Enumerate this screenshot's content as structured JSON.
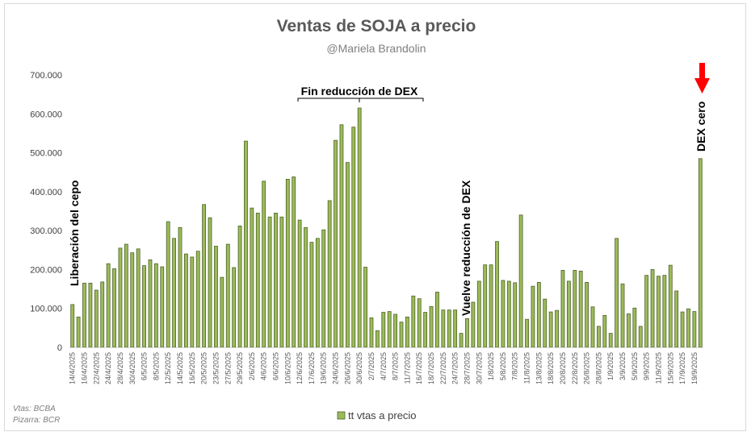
{
  "chart_data": {
    "type": "bar",
    "title": "Ventas de SOJA a precio",
    "subtitle": "@Mariela Brandolin",
    "xlabel": "",
    "ylabel": "",
    "ylim": [
      0,
      700000
    ],
    "yticks": [
      "0",
      "100.000",
      "200.000",
      "300.000",
      "400.000",
      "500.000",
      "600.000",
      "700.000"
    ],
    "grid": false,
    "legend_position": "bottom",
    "series": [
      {
        "name": "tt vtas a precio",
        "color": "#9bbb59",
        "edge": "#4f6228"
      }
    ],
    "categories": [
      "14/4/2025",
      "",
      "16/4/2025",
      "",
      "22/4/2025",
      "",
      "24/4/2025",
      "",
      "28/4/2025",
      "",
      "30/4/2025",
      "",
      "6/5/2025",
      "",
      "8/5/2025",
      "",
      "12/5/2025",
      "",
      "14/5/2025",
      "",
      "16/5/2025",
      "",
      "20/5/2025",
      "",
      "23/5/2025",
      "",
      "27/5/2025",
      "",
      "29/5/2025",
      "",
      "2/6/2025",
      "",
      "4/6/2025",
      "",
      "6/6/2025",
      "",
      "10/6/2025",
      "",
      "12/6/2025",
      "",
      "17/6/2025",
      "",
      "19/6/2025",
      "",
      "24/6/2025",
      "",
      "26/6/2025",
      "",
      "30/6/2025",
      "",
      "2/7/2025",
      "",
      "4/7/2025",
      "",
      "8/7/2025",
      "",
      "11/7/2025",
      "",
      "16/7/2025",
      "",
      "18/7/2025",
      "",
      "22/7/2025",
      "",
      "24/7/2025",
      "",
      "28/7/2025",
      "",
      "30/7/2025",
      "",
      "1/8/2025",
      "",
      "5/8/2025",
      "",
      "7/8/2025",
      "",
      "11/8/2025",
      "",
      "13/8/2025",
      "",
      "18/8/2025",
      "",
      "20/8/2025",
      "",
      "22/8/2025",
      "",
      "26/8/2025",
      "",
      "28/8/2025",
      "",
      "1/9/2025",
      "",
      "3/9/2025",
      "",
      "5/9/2025",
      "",
      "9/9/2025",
      "",
      "11/9/2025",
      "",
      "15/9/2025",
      "",
      "17/9/2025",
      "",
      "19/9/2025",
      ""
    ],
    "values": [
      110000,
      78000,
      165000,
      165000,
      147000,
      168000,
      215000,
      202000,
      255000,
      265000,
      243000,
      253000,
      210000,
      225000,
      215000,
      207000,
      323000,
      280000,
      308000,
      240000,
      232000,
      247000,
      367000,
      333000,
      260000,
      180000,
      265000,
      205000,
      312000,
      530000,
      358000,
      345000,
      427000,
      335000,
      345000,
      335000,
      432000,
      438000,
      327000,
      308000,
      270000,
      280000,
      302000,
      377000,
      532000,
      572000,
      475000,
      566000,
      615000,
      206000,
      76000,
      43000,
      90000,
      92000,
      85000,
      65000,
      78000,
      132000,
      125000,
      90000,
      105000,
      142000,
      96000,
      96000,
      96000,
      36000,
      74000,
      116000,
      170000,
      212000,
      212000,
      272000,
      172000,
      170000,
      166000,
      340000,
      72000,
      157000,
      167000,
      124000,
      91000,
      95000,
      198000,
      170000,
      198000,
      196000,
      167000,
      104000,
      54000,
      82000,
      36000,
      280000,
      163000,
      86000,
      101000,
      54000,
      185000,
      200000,
      183000,
      185000,
      211000,
      145000,
      91000,
      99000,
      92000,
      485000
    ],
    "annotations": {
      "liberacion": "Liberación del cepo",
      "fin_dex": "Fin reducción de DEX",
      "vuelve_dex": "Vuelve reducción de DEX",
      "dex_cero": "DEX cero"
    },
    "arrow_color": "#ff0000"
  },
  "footnotes": [
    "Vtas: BCBA",
    "Pizarra: BCR"
  ]
}
